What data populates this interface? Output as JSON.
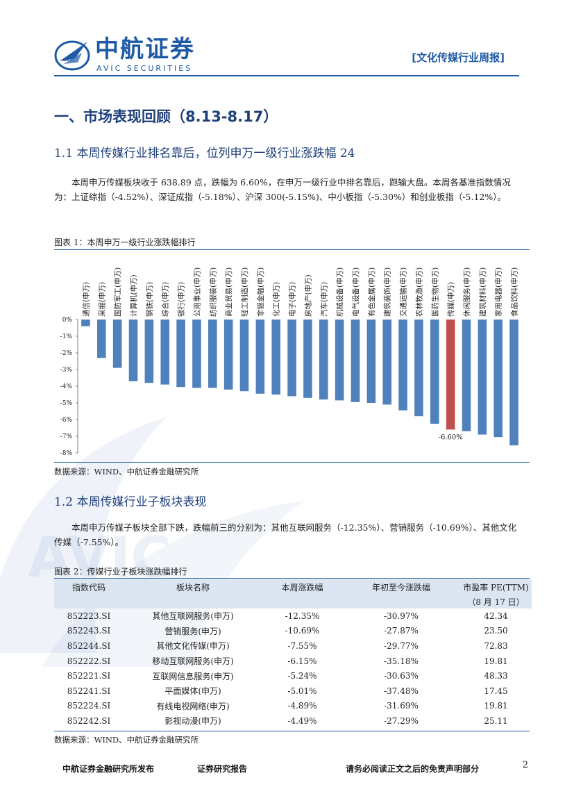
{
  "header": {
    "logo_cn": "中航证券",
    "logo_en": "AVIC SECURITIES",
    "logo_mark_text": "AVIC",
    "report_type": "[文化传媒行业周报]"
  },
  "section1": {
    "title": "一、市场表现回顾（8.13-8.17）",
    "sub1_title": "1.1 本周传媒行业排名靠后，位列申万一级行业涨跌幅 24",
    "sub1_para": "本周申万传媒板块收于 638.89 点，跌幅为 6.60%，在申万一级行业中排名靠后，跑输大盘。本周各基准指数情况为：上证综指（-4.52%）、深证成指（-5.18%）、沪深 300(-5.15%)、中小板指（-5.30%）和创业板指（-5.12%）。",
    "fig1_title": "图表 1：本周申万一级行业涨跌幅排行",
    "fig1_source": "数据来源：WIND、中航证券金融研究所",
    "sub2_title": "1.2 本周传媒行业子板块表现",
    "sub2_para": "本周申万传媒子板块全部下跌，跌幅前三的分别为：其他互联网服务（-12.35%）、营销服务（-10.69%）、其他文化传媒（-7.55%）。",
    "fig2_title": "图表 2：传媒行业子板块涨跌幅排行",
    "fig2_source": "数据来源：WIND、中航证券金融研究所"
  },
  "chart_data": {
    "type": "bar",
    "categories": [
      "通信(申万)",
      "采掘(申万)",
      "国防军工(申万)",
      "计算机(申万)",
      "钢铁(申万)",
      "综合(申万)",
      "银行(申万)",
      "公用事业(申万)",
      "纺织服装(申万)",
      "商业贸易(申万)",
      "轻工制造(申万)",
      "非银金融(申万)",
      "化工(申万)",
      "电子(申万)",
      "房地产(申万)",
      "汽车(申万)",
      "机械设备(申万)",
      "电气设备(申万)",
      "有色金属(申万)",
      "建筑装饰(申万)",
      "交通运输(申万)",
      "农林牧渔(申万)",
      "医药生物(申万)",
      "传媒(申万)",
      "休闲服务(申万)",
      "建筑材料(申万)",
      "家用电器(申万)",
      "食品饮料(申万)"
    ],
    "values": [
      -0.4,
      -2.3,
      -2.9,
      -3.7,
      -3.8,
      -3.9,
      -4.05,
      -4.1,
      -4.1,
      -4.2,
      -4.3,
      -4.45,
      -4.5,
      -4.6,
      -4.7,
      -4.8,
      -4.85,
      -4.95,
      -5.0,
      -5.1,
      -5.45,
      -5.8,
      -6.25,
      -6.6,
      -6.7,
      -6.9,
      -7.05,
      -7.55
    ],
    "highlight_index": 23,
    "highlight_label": "-6.60%",
    "yticks": [
      "0%",
      "-1%",
      "-2%",
      "-3%",
      "-4%",
      "-5%",
      "-6%",
      "-7%",
      "-8%"
    ],
    "ylim": [
      -8,
      0
    ],
    "colors": {
      "bar": "#4f81bd",
      "highlight": "#c0504d"
    },
    "grid": false
  },
  "table": {
    "headers": [
      "指数代码",
      "板块名称",
      "本周涨跌幅",
      "年初至今涨跌幅",
      "市盈率 PE(TTM)"
    ],
    "header_sub": "（8 月 17 日）",
    "rows": [
      [
        "852223.SI",
        "其他互联网服务(申万)",
        "-12.35%",
        "-30.97%",
        "42.34"
      ],
      [
        "852243.SI",
        "营销服务(申万)",
        "-10.69%",
        "-27.87%",
        "23.50"
      ],
      [
        "852244.SI",
        "其他文化传媒(申万)",
        "-7.55%",
        "-29.77%",
        "72.83"
      ],
      [
        "852222.SI",
        "移动互联网服务(申万)",
        "-6.15%",
        "-35.18%",
        "19.81"
      ],
      [
        "852221.SI",
        "互联网信息服务(申万)",
        "-5.24%",
        "-30.63%",
        "48.33"
      ],
      [
        "852241.SI",
        "平面媒体(申万)",
        "-5.01%",
        "-37.48%",
        "17.45"
      ],
      [
        "852224.SI",
        "有线电视网络(申万)",
        "-4.89%",
        "-31.69%",
        "19.81"
      ],
      [
        "852242.SI",
        "影视动漫(申万)",
        "-4.49%",
        "-27.29%",
        "25.11"
      ]
    ]
  },
  "footer": {
    "publisher": "中航证券金融研究所发布",
    "report_kind": "证券研究报告",
    "disclaimer": "请务必阅读正文之后的免责声明部分",
    "page": "2"
  }
}
